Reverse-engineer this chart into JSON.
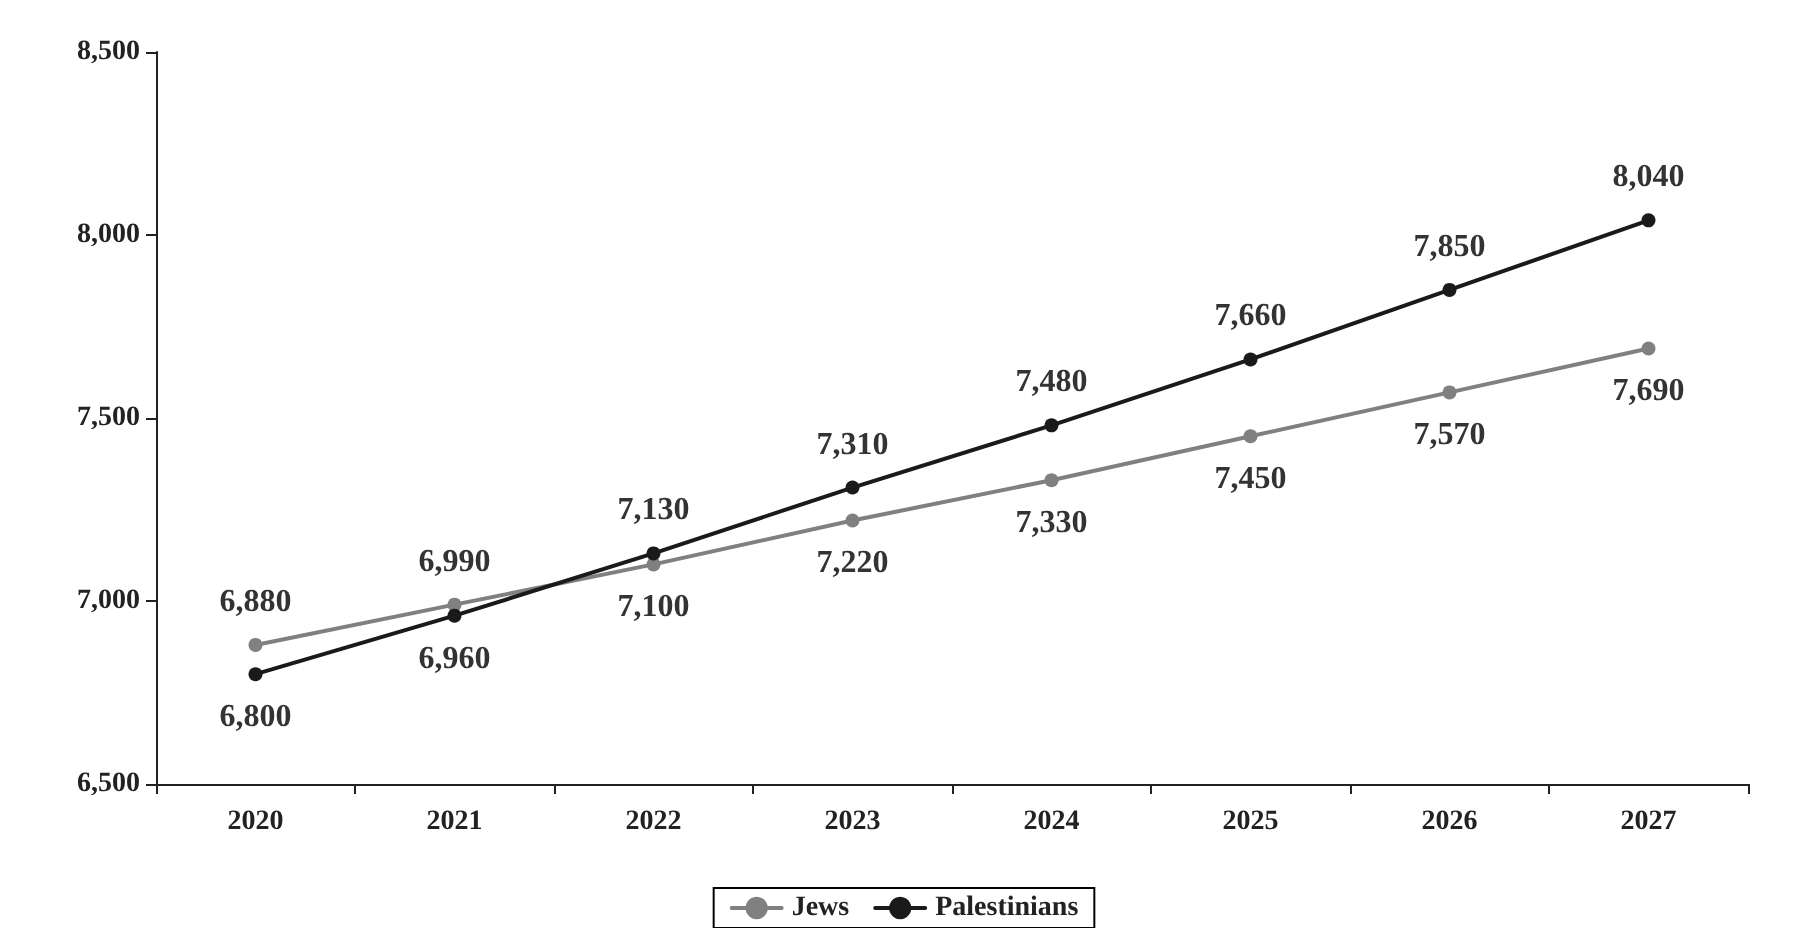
{
  "chart_data": {
    "type": "line",
    "categories": [
      "2020",
      "2021",
      "2022",
      "2023",
      "2024",
      "2025",
      "2026",
      "2027"
    ],
    "series": [
      {
        "name": "Jews",
        "color": "#808080",
        "values": [
          6880,
          6990,
          7100,
          7220,
          7330,
          7450,
          7570,
          7690
        ],
        "value_labels": [
          "6,880",
          "6,990",
          "7,100",
          "7,220",
          "7,330",
          "7,450",
          "7,570",
          "7,690"
        ]
      },
      {
        "name": "Palestinians",
        "color": "#1a1a1a",
        "values": [
          6800,
          6960,
          7130,
          7310,
          7480,
          7660,
          7850,
          8040
        ],
        "value_labels": [
          "6,800",
          "6,960",
          "7,130",
          "7,310",
          "7,480",
          "7,660",
          "7,850",
          "8,040"
        ]
      }
    ],
    "ylim": [
      6500,
      8500
    ],
    "yticks": [
      {
        "value": 6500,
        "label": "6,500"
      },
      {
        "value": 7000,
        "label": "7,000"
      },
      {
        "value": 7500,
        "label": "7,500"
      },
      {
        "value": 8000,
        "label": "8,000"
      },
      {
        "value": 8500,
        "label": "8,500"
      }
    ],
    "grid": false,
    "legend": "bottom",
    "marker": "circle",
    "line_style": "solid"
  }
}
